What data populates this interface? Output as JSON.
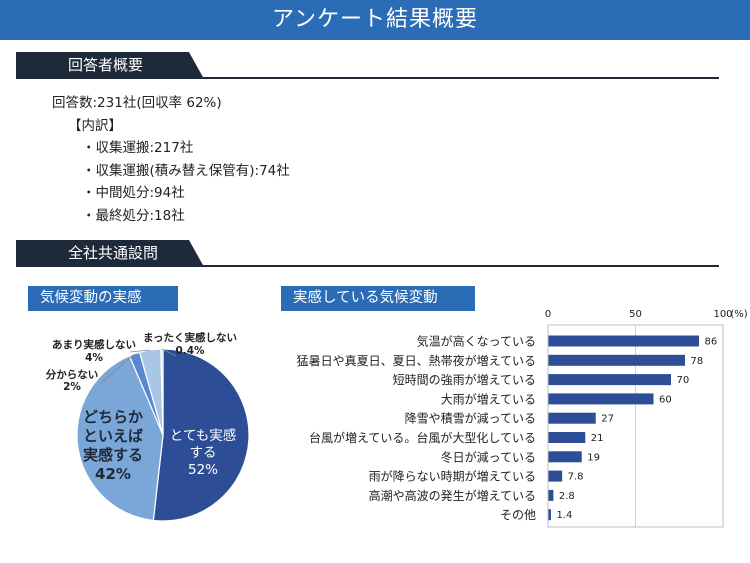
{
  "page_title": "アンケート結果概要",
  "section1": {
    "title": "回答者概要",
    "response": "回答数:231社(回収率 62%)",
    "breakdown_label": "【内訳】",
    "items": [
      "・収集運搬:217社",
      "・収集運搬(積み替え保管有):74社",
      "・中間処分:94社",
      "・最終処分:18社"
    ]
  },
  "section2": {
    "title": "全社共通設問"
  },
  "colors": {
    "header_blue": "#2b6cb6",
    "dark_navy": "#1e2a3a",
    "pie_dark": "#2d4e96",
    "pie_mid": "#7ba6d8",
    "pie_mid2": "#5889cf",
    "pie_light": "#a9c6e6",
    "bar": "#2d4e96"
  },
  "chart_data": [
    {
      "type": "pie",
      "title": "気候変動の実感",
      "slices": [
        {
          "label": "とても実感する",
          "value": 52,
          "label_text": "とても実感\nする\n52%"
        },
        {
          "label": "どちらかといえば実感する",
          "value": 42,
          "label_text": "どちらか\nといえば\n実感する\n42%"
        },
        {
          "label": "分からない",
          "value": 2,
          "label_text": "分からない\n2%"
        },
        {
          "label": "あまり実感しない",
          "value": 4,
          "label_text": "あまり実感しない\n4%"
        },
        {
          "label": "まったく実感しない",
          "value": 0.4,
          "label_text": "まったく実感しない\n0.4%"
        }
      ]
    },
    {
      "type": "bar",
      "orientation": "horizontal",
      "title": "実感している気候変動",
      "xlim": [
        0,
        100
      ],
      "ticks": [
        "0",
        "50",
        "100"
      ],
      "unit_label": "(%)",
      "categories": [
        "気温が高くなっている",
        "猛暑日や真夏日、夏日、熱帯夜が増えている",
        "短時間の強雨が増えている",
        "大雨が増えている",
        "降雪や積雪が減っている",
        "台風が増えている。台風が大型化している",
        "冬日が減っている",
        "雨が降らない時期が増えている",
        "高潮や高波の発生が増えている",
        "その他"
      ],
      "values": [
        86,
        78,
        70,
        60,
        27,
        21,
        19,
        7.8,
        2.8,
        1.4
      ],
      "value_labels": [
        "86",
        "78",
        "70",
        "60",
        "27",
        "21",
        "19",
        "7.8",
        "2.8",
        "1.4"
      ],
      "grid": true
    }
  ]
}
